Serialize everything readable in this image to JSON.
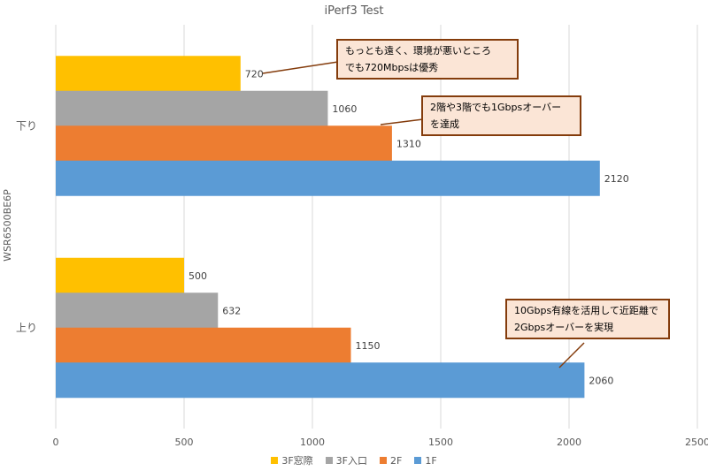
{
  "chart_data": {
    "type": "bar",
    "orientation": "horizontal",
    "title": "iPerf3 Test",
    "ylabel": "WSR6500BE6P",
    "xlabel": "",
    "categories": [
      "下り",
      "上り"
    ],
    "series": [
      {
        "name": "3F窓際",
        "color": "#ffc000",
        "values": [
          720,
          500
        ]
      },
      {
        "name": "3F入口",
        "color": "#a5a5a5",
        "values": [
          1060,
          632
        ]
      },
      {
        "name": "2F",
        "color": "#ed7d31",
        "values": [
          1310,
          1150
        ]
      },
      {
        "name": "1F",
        "color": "#5b9bd5",
        "values": [
          2120,
          2060
        ]
      }
    ],
    "xlim": [
      0,
      2500
    ],
    "xticks": [
      0,
      500,
      1000,
      1500,
      2000,
      2500
    ],
    "grid": true,
    "legend_position": "bottom",
    "annotations": [
      {
        "lines": [
          "もっとも遠く、環境が悪いところ",
          "でも720Mbpsは優秀"
        ],
        "target_series": 0,
        "target_category": 0
      },
      {
        "lines": [
          "2階や3階でも1Gbpsオーバー",
          "を達成"
        ],
        "target_series": 2,
        "target_category": 0
      },
      {
        "lines": [
          "10Gbps有線を活用して近距離で",
          "2Gbpsオーバーを実現"
        ],
        "target_series": 3,
        "target_category": 1
      }
    ]
  }
}
